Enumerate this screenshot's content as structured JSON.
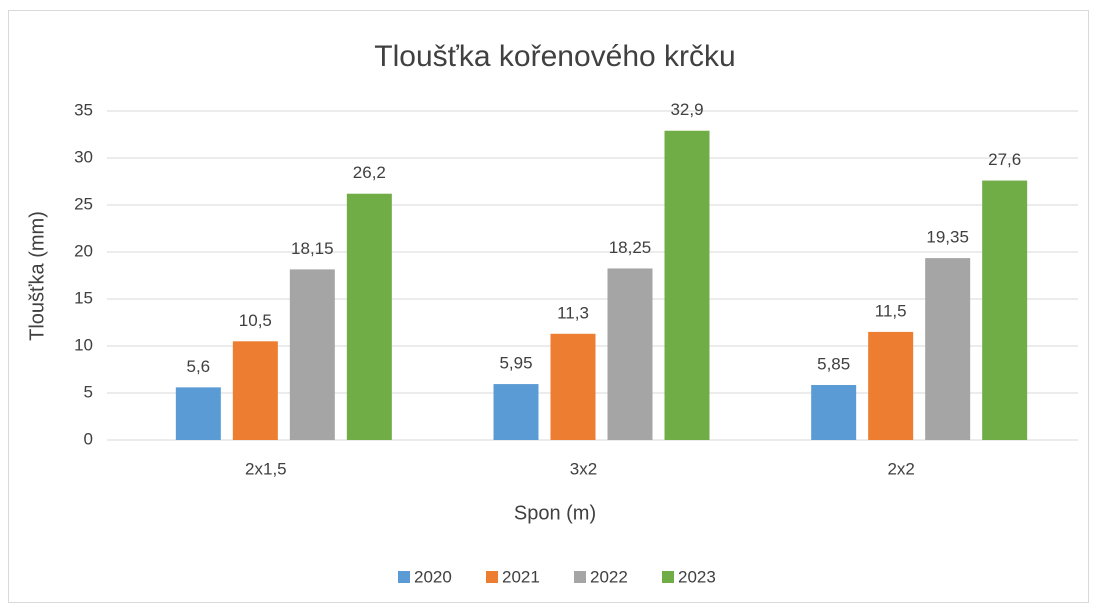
{
  "chart_data": {
    "type": "bar",
    "title": "Tloušťka kořenového krčku",
    "x_label": "Spon (m)",
    "y_label": "Tloušťka (mm)",
    "categories": [
      "2x1,5",
      "3x2",
      "2x2"
    ],
    "series": [
      {
        "name": "2020",
        "color": "#5b9bd5",
        "values": [
          5.6,
          5.95,
          5.85
        ],
        "value_labels": [
          "5,6",
          "5,95",
          "5,85"
        ]
      },
      {
        "name": "2021",
        "color": "#ed7d31",
        "values": [
          10.5,
          11.3,
          11.5
        ],
        "value_labels": [
          "10,5",
          "11,3",
          "11,5"
        ]
      },
      {
        "name": "2022",
        "color": "#a5a5a5",
        "values": [
          18.15,
          18.25,
          19.35
        ],
        "value_labels": [
          "18,15",
          "18,25",
          "19,35"
        ]
      },
      {
        "name": "2023",
        "color": "#70ad47",
        "values": [
          26.2,
          32.9,
          27.6
        ],
        "value_labels": [
          "26,2",
          "32,9",
          "27,6"
        ]
      }
    ],
    "ylim": [
      0,
      35
    ],
    "yticks": [
      0,
      5,
      10,
      15,
      20,
      25,
      30,
      35
    ],
    "grid": true,
    "legend": "bottom"
  }
}
